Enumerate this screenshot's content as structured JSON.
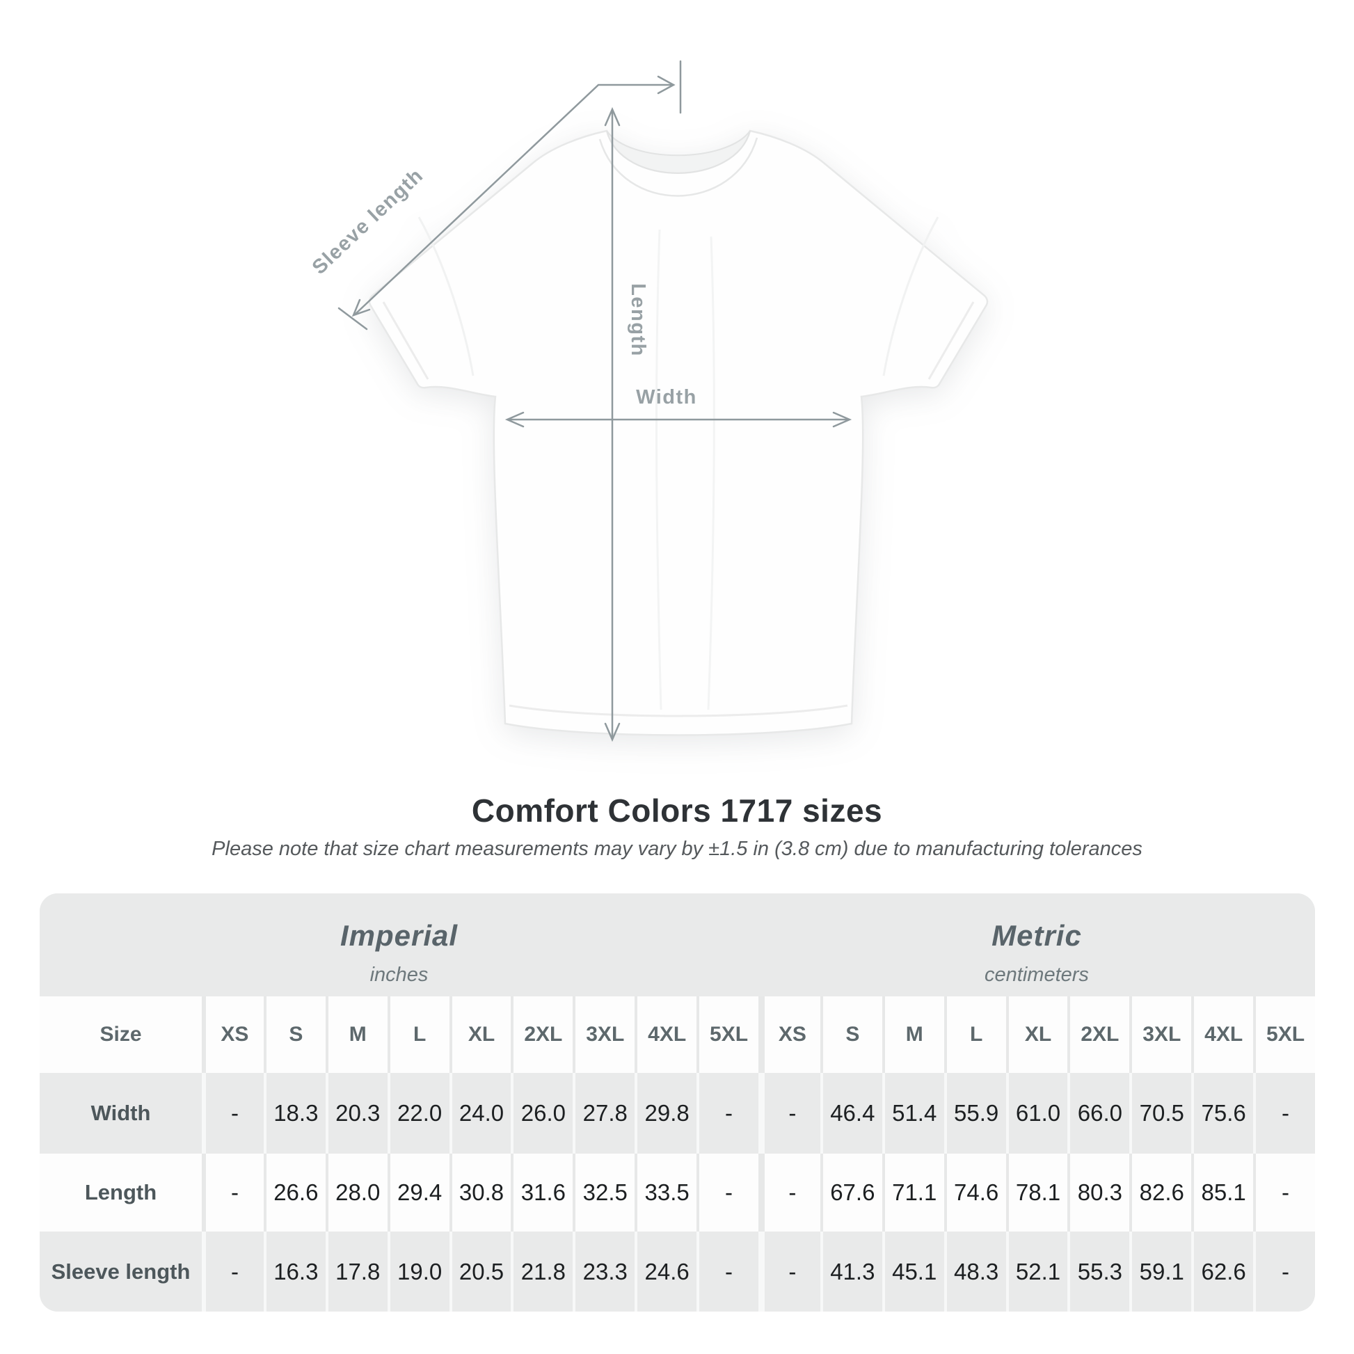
{
  "diagram": {
    "sleeve_label": "Sleeve length",
    "length_label": "Length",
    "width_label": "Width"
  },
  "title": "Comfort Colors 1717 sizes",
  "subtitle": "Please note that size chart measurements may vary by ±1.5 in (3.8 cm) due to manufacturing tolerances",
  "table": {
    "size_header_label": "Size",
    "unit_groups": [
      {
        "label": "Imperial",
        "unit": "inches"
      },
      {
        "label": "Metric",
        "unit": "centimeters"
      }
    ],
    "sizes": [
      "XS",
      "S",
      "M",
      "L",
      "XL",
      "2XL",
      "3XL",
      "4XL",
      "5XL"
    ],
    "rows": [
      {
        "label": "Width",
        "imperial": [
          "-",
          "18.3",
          "20.3",
          "22.0",
          "24.0",
          "26.0",
          "27.8",
          "29.8",
          "-"
        ],
        "metric": [
          "-",
          "46.4",
          "51.4",
          "55.9",
          "61.0",
          "66.0",
          "70.5",
          "75.6",
          "-"
        ]
      },
      {
        "label": "Length",
        "imperial": [
          "-",
          "26.6",
          "28.0",
          "29.4",
          "30.8",
          "31.6",
          "32.5",
          "33.5",
          "-"
        ],
        "metric": [
          "-",
          "67.6",
          "71.1",
          "74.6",
          "78.1",
          "80.3",
          "82.6",
          "85.1",
          "-"
        ]
      },
      {
        "label": "Sleeve length",
        "imperial": [
          "-",
          "16.3",
          "17.8",
          "19.0",
          "20.5",
          "21.8",
          "23.3",
          "24.6",
          "-"
        ],
        "metric": [
          "-",
          "41.3",
          "45.1",
          "48.3",
          "52.1",
          "55.3",
          "59.1",
          "62.6",
          "-"
        ]
      }
    ]
  },
  "chart_data": {
    "type": "table",
    "title": "Comfort Colors 1717 sizes",
    "note": "Please note that size chart measurements may vary by ±1.5 in (3.8 cm) due to manufacturing tolerances",
    "unit_groups": [
      {
        "label": "Imperial",
        "unit": "inches"
      },
      {
        "label": "Metric",
        "unit": "centimeters"
      }
    ],
    "sizes": [
      "XS",
      "S",
      "M",
      "L",
      "XL",
      "2XL",
      "3XL",
      "4XL",
      "5XL"
    ],
    "measurements": [
      {
        "label": "Width",
        "imperial_inches": [
          "-",
          "18.3",
          "20.3",
          "22.0",
          "24.0",
          "26.0",
          "27.8",
          "29.8",
          "-"
        ],
        "metric_centimeters": [
          "-",
          "46.4",
          "51.4",
          "55.9",
          "61.0",
          "66.0",
          "70.5",
          "75.6",
          "-"
        ]
      },
      {
        "label": "Length",
        "imperial_inches": [
          "-",
          "26.6",
          "28.0",
          "29.4",
          "30.8",
          "31.6",
          "32.5",
          "33.5",
          "-"
        ],
        "metric_centimeters": [
          "-",
          "67.6",
          "71.1",
          "74.6",
          "78.1",
          "80.3",
          "82.6",
          "85.1",
          "-"
        ]
      },
      {
        "label": "Sleeve length",
        "imperial_inches": [
          "-",
          "16.3",
          "17.8",
          "19.0",
          "20.5",
          "21.8",
          "23.3",
          "24.6",
          "-"
        ],
        "metric_centimeters": [
          "-",
          "41.3",
          "45.1",
          "48.3",
          "52.1",
          "55.3",
          "59.1",
          "62.6",
          "-"
        ]
      }
    ]
  },
  "colors": {
    "page_background": "#ffffff",
    "table_background": "#e9eaea",
    "row_white": "#fdfdfd",
    "annotation_gray": "#8f999d",
    "label_gray": "#98a1a5",
    "title_dark": "#2e3236",
    "value_dark": "#1c1f21"
  }
}
